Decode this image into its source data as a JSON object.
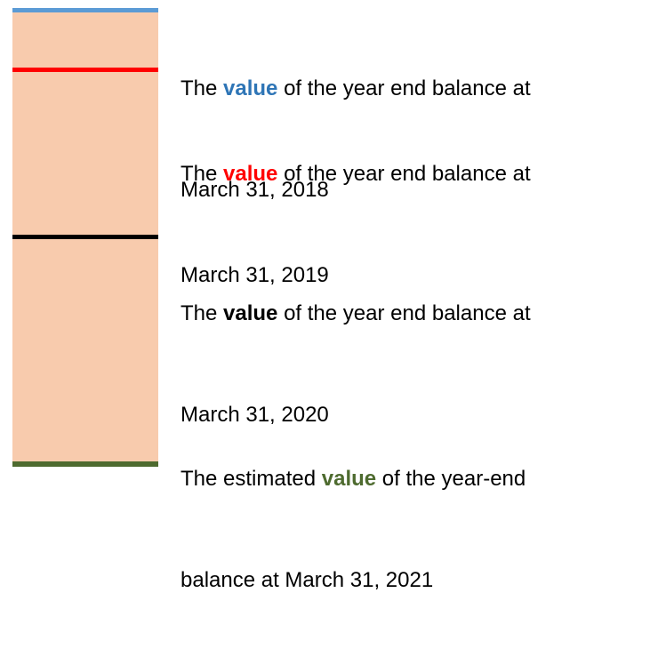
{
  "items": [
    {
      "prefix": "The ",
      "highlight": "value",
      "suffix": " of the year end balance at",
      "line2": "March 31, 2018"
    },
    {
      "prefix": "The ",
      "highlight": "value",
      "suffix": " of the year end balance at",
      "line2": "March 31, 2019"
    },
    {
      "prefix": "The ",
      "highlight": "value",
      "suffix": " of the year end balance at",
      "line2": "March 31, 2020"
    },
    {
      "prefix": "The estimated ",
      "highlight": "value",
      "suffix": " of the year-end",
      "line2": "balance at March 31, 2021"
    }
  ]
}
